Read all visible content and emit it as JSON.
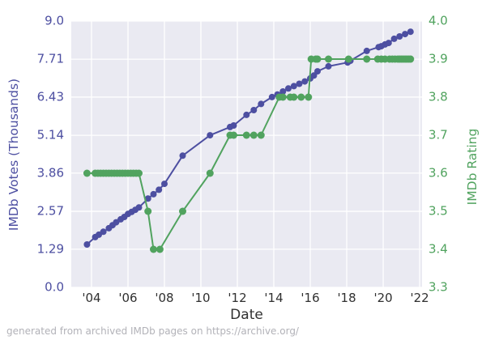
{
  "footer": {
    "note": "generated from archived IMDb pages on https://archive.org/"
  },
  "colors": {
    "votes_series": "#4d4fa1",
    "rating_series": "#51a35f",
    "plot_background": "#eaeaf2",
    "gridline": "#ffffff",
    "x_tick_text": "#303030",
    "footer_text": "#b2b2b8"
  },
  "chart_data": {
    "type": "line",
    "title": "",
    "xlabel": "Date",
    "ylabel_left": "IMDb Votes (Thousands)",
    "ylabel_right": "IMDb Rating",
    "grid": true,
    "legend": false,
    "xlim": [
      2002.89,
      2022.13
    ],
    "ylim_left": [
      0.0,
      9.0
    ],
    "ylim_right": [
      3.3,
      4.0
    ],
    "x_ticks": [
      {
        "value": 2004,
        "label": "'04"
      },
      {
        "value": 2006,
        "label": "'06"
      },
      {
        "value": 2008,
        "label": "'08"
      },
      {
        "value": 2010,
        "label": "'10"
      },
      {
        "value": 2012,
        "label": "'12"
      },
      {
        "value": 2014,
        "label": "'14"
      },
      {
        "value": 2016,
        "label": "'16"
      },
      {
        "value": 2018,
        "label": "'18"
      },
      {
        "value": 2020,
        "label": "'20"
      },
      {
        "value": 2022,
        "label": "'22"
      }
    ],
    "y_ticks_left": [
      {
        "value": 9.0,
        "label": "9.0"
      },
      {
        "value": 7.71,
        "label": "7.71"
      },
      {
        "value": 6.43,
        "label": "6.43"
      },
      {
        "value": 5.14,
        "label": "5.14"
      },
      {
        "value": 3.86,
        "label": "3.86"
      },
      {
        "value": 2.57,
        "label": "2.57"
      },
      {
        "value": 1.29,
        "label": "1.29"
      },
      {
        "value": 0.0,
        "label": "0.0"
      }
    ],
    "y_ticks_right": [
      {
        "value": 4.0,
        "label": "4.0"
      },
      {
        "value": 3.9,
        "label": "3.9"
      },
      {
        "value": 3.8,
        "label": "3.8"
      },
      {
        "value": 3.7,
        "label": "3.7"
      },
      {
        "value": 3.6,
        "label": "3.6"
      },
      {
        "value": 3.5,
        "label": "3.5"
      },
      {
        "value": 3.4,
        "label": "3.4"
      },
      {
        "value": 3.3,
        "label": "3.3"
      }
    ],
    "series": [
      {
        "name": "IMDb Votes (Thousands)",
        "axis": "left",
        "color": "#4d4fa1",
        "marker_radius": 4,
        "points": [
          [
            2003.75,
            1.45
          ],
          [
            2004.2,
            1.7
          ],
          [
            2004.4,
            1.78
          ],
          [
            2004.65,
            1.88
          ],
          [
            2004.95,
            2.0
          ],
          [
            2005.15,
            2.1
          ],
          [
            2005.35,
            2.2
          ],
          [
            2005.6,
            2.3
          ],
          [
            2005.8,
            2.38
          ],
          [
            2006.0,
            2.48
          ],
          [
            2006.2,
            2.55
          ],
          [
            2006.4,
            2.62
          ],
          [
            2006.6,
            2.7
          ],
          [
            2007.1,
            3.0
          ],
          [
            2007.4,
            3.15
          ],
          [
            2007.7,
            3.3
          ],
          [
            2008.0,
            3.5
          ],
          [
            2009.0,
            4.45
          ],
          [
            2010.5,
            5.14
          ],
          [
            2011.6,
            5.42
          ],
          [
            2011.8,
            5.47
          ],
          [
            2012.5,
            5.83
          ],
          [
            2012.9,
            5.99
          ],
          [
            2013.3,
            6.2
          ],
          [
            2013.9,
            6.43
          ],
          [
            2014.2,
            6.52
          ],
          [
            2014.5,
            6.62
          ],
          [
            2014.8,
            6.72
          ],
          [
            2015.1,
            6.8
          ],
          [
            2015.4,
            6.88
          ],
          [
            2015.7,
            6.96
          ],
          [
            2016.0,
            7.06
          ],
          [
            2016.2,
            7.16
          ],
          [
            2016.4,
            7.3
          ],
          [
            2017.0,
            7.47
          ],
          [
            2018.05,
            7.6
          ],
          [
            2018.2,
            7.66
          ],
          [
            2019.1,
            7.99
          ],
          [
            2019.75,
            8.12
          ],
          [
            2019.9,
            8.15
          ],
          [
            2020.1,
            8.21
          ],
          [
            2020.3,
            8.26
          ],
          [
            2020.6,
            8.4
          ],
          [
            2020.9,
            8.48
          ],
          [
            2021.2,
            8.56
          ],
          [
            2021.5,
            8.64
          ]
        ]
      },
      {
        "name": "IMDb Rating",
        "axis": "right",
        "color": "#51a35f",
        "marker_radius": 4.5,
        "points": [
          [
            2003.75,
            3.6
          ],
          [
            2004.2,
            3.6
          ],
          [
            2004.35,
            3.6
          ],
          [
            2004.5,
            3.6
          ],
          [
            2004.65,
            3.6
          ],
          [
            2004.8,
            3.6
          ],
          [
            2004.95,
            3.6
          ],
          [
            2005.1,
            3.6
          ],
          [
            2005.25,
            3.6
          ],
          [
            2005.4,
            3.6
          ],
          [
            2005.55,
            3.6
          ],
          [
            2005.7,
            3.6
          ],
          [
            2005.85,
            3.6
          ],
          [
            2006.0,
            3.6
          ],
          [
            2006.15,
            3.6
          ],
          [
            2006.3,
            3.6
          ],
          [
            2006.45,
            3.6
          ],
          [
            2006.6,
            3.6
          ],
          [
            2007.1,
            3.5
          ],
          [
            2007.4,
            3.4
          ],
          [
            2007.75,
            3.4
          ],
          [
            2009.0,
            3.5
          ],
          [
            2010.5,
            3.6
          ],
          [
            2011.6,
            3.7
          ],
          [
            2011.8,
            3.7
          ],
          [
            2012.5,
            3.7
          ],
          [
            2012.9,
            3.7
          ],
          [
            2013.3,
            3.7
          ],
          [
            2014.3,
            3.8
          ],
          [
            2014.5,
            3.8
          ],
          [
            2014.9,
            3.8
          ],
          [
            2015.1,
            3.8
          ],
          [
            2015.5,
            3.8
          ],
          [
            2015.9,
            3.8
          ],
          [
            2016.05,
            3.9
          ],
          [
            2016.3,
            3.9
          ],
          [
            2016.4,
            3.9
          ],
          [
            2017.0,
            3.9
          ],
          [
            2018.1,
            3.9
          ],
          [
            2019.1,
            3.9
          ],
          [
            2019.7,
            3.9
          ],
          [
            2019.9,
            3.9
          ],
          [
            2020.1,
            3.9
          ],
          [
            2020.35,
            3.9
          ],
          [
            2020.5,
            3.9
          ],
          [
            2020.65,
            3.9
          ],
          [
            2020.8,
            3.9
          ],
          [
            2020.9,
            3.9
          ],
          [
            2021.0,
            3.9
          ],
          [
            2021.1,
            3.9
          ],
          [
            2021.2,
            3.9
          ],
          [
            2021.3,
            3.9
          ],
          [
            2021.4,
            3.9
          ],
          [
            2021.5,
            3.9
          ]
        ]
      }
    ]
  }
}
